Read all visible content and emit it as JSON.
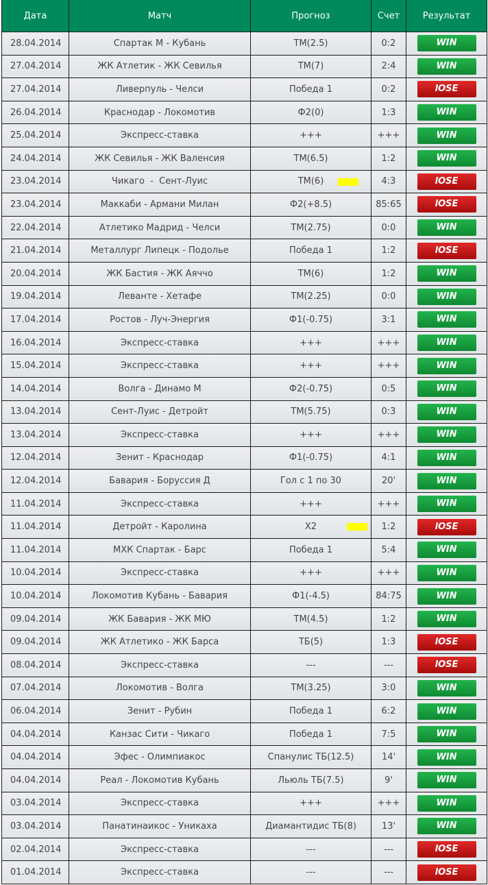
{
  "header": {
    "date": "Дата",
    "match": "Матч",
    "forecast": "Прогноз",
    "score": "Счет",
    "result": "Результат"
  },
  "colors": {
    "header": "#008a5c",
    "win": "#1a9e40",
    "lose": "#c41a1a",
    "highlight": "#ffff00"
  },
  "rows": [
    {
      "date": "28.04.2014",
      "match": "Спартак М - Кубань",
      "forecast": "ТМ(2.5)",
      "score": "0:2",
      "result": "WIN"
    },
    {
      "date": "27.04.2014",
      "match": "ЖК Атлетик - ЖК Севилья",
      "forecast": "ТМ(7)",
      "score": "2:4",
      "result": "WIN"
    },
    {
      "date": "27.04.2014",
      "match": "Ливерпуль - Челси",
      "forecast": "Победа 1",
      "score": "0:2",
      "result": "lOSE"
    },
    {
      "date": "26.04.2014",
      "match": "Краснодар - Локомотив",
      "forecast": "Ф2(0)",
      "score": "1:3",
      "result": "WIN"
    },
    {
      "date": "25.04.2014",
      "match": "Экспресс-ставка",
      "forecast": "+++",
      "score": "+++",
      "result": "WIN"
    },
    {
      "date": "24.04.2014",
      "match": "ЖК Севилья - ЖК Валенсия",
      "forecast": "ТМ(6.5)",
      "score": "1:2",
      "result": "WIN"
    },
    {
      "date": "23.04.2014",
      "match": "Чикаго  -  Сент-Луис",
      "forecast": "ТМ(6)",
      "score": "4:3",
      "result": "lOSE",
      "highlight": true
    },
    {
      "date": "23.04.2014",
      "match": "Маккаби - Армани Милан",
      "forecast": "Ф2(+8.5)",
      "score": "85:65",
      "result": "lOSE"
    },
    {
      "date": "22.04.2014",
      "match": "Атлетико Мадрид - Челси",
      "forecast": "ТМ(2.75)",
      "score": "0:0",
      "result": "WIN"
    },
    {
      "date": "21.04.2014",
      "match": "Металлург Липецк - Подолье",
      "forecast": "Победа 1",
      "score": "1:2",
      "result": "lOSE"
    },
    {
      "date": "20.04.2014",
      "match": "ЖК Бастия - ЖК Аяччо",
      "forecast": "ТМ(6)",
      "score": "1:2",
      "result": "WIN"
    },
    {
      "date": "19.04.2014",
      "match": "Леванте - Хетафе",
      "forecast": "ТМ(2.25)",
      "score": "0:0",
      "result": "WIN"
    },
    {
      "date": "17.04.2014",
      "match": "Ростов - Луч-Энергия",
      "forecast": "Ф1(-0.75)",
      "score": "3:1",
      "result": "WIN"
    },
    {
      "date": "16.04.2014",
      "match": "Экспресс-ставка",
      "forecast": "+++",
      "score": "+++",
      "result": "WIN"
    },
    {
      "date": "15.04.2014",
      "match": "Экспресс-ставка",
      "forecast": "+++",
      "score": "+++",
      "result": "WIN"
    },
    {
      "date": "14.04.2014",
      "match": "Волга - Динамо М",
      "forecast": "Ф2(-0.75)",
      "score": "0:5",
      "result": "WIN"
    },
    {
      "date": "13.04.2014",
      "match": "Сент-Луис - Детройт",
      "forecast": "ТМ(5.75)",
      "score": "0:3",
      "result": "WIN"
    },
    {
      "date": "13.04.2014",
      "match": "Экспресс-ставка",
      "forecast": "+++",
      "score": "+++",
      "result": "WIN"
    },
    {
      "date": "12.04.2014",
      "match": "Зенит - Краснодар",
      "forecast": "Ф1(-0.75)",
      "score": "4:1",
      "result": "WIN"
    },
    {
      "date": "12.04.2014",
      "match": "Бавария - Боруссия Д",
      "forecast": "Гол с 1 по 30",
      "score": "20'",
      "result": "WIN"
    },
    {
      "date": "11.04.2014",
      "match": "Экспресс-ставка",
      "forecast": "+++",
      "score": "+++",
      "result": "WIN"
    },
    {
      "date": "11.04.2014",
      "match": "Детройт - Каролина",
      "forecast": "Х2",
      "score": "1:2",
      "result": "lOSE",
      "highlight": true
    },
    {
      "date": "11.04.2014",
      "match": "МХК Спартак - Барс",
      "forecast": "Победа 1",
      "score": "5:4",
      "result": "WIN"
    },
    {
      "date": "10.04.2014",
      "match": "Экспресс-ставка",
      "forecast": "+++",
      "score": "+++",
      "result": "WIN"
    },
    {
      "date": "10.04.2014",
      "match": "Локомотив Кубань - Бавария",
      "forecast": "Ф1(-4.5)",
      "score": "84:75",
      "result": "WIN"
    },
    {
      "date": "09.04.2014",
      "match": "ЖК Бавария - ЖК МЮ",
      "forecast": "ТМ(4.5)",
      "score": "1:2",
      "result": "WIN"
    },
    {
      "date": "09.04.2014",
      "match": "ЖК Атлетико - ЖК Барса",
      "forecast": "ТБ(5)",
      "score": "1:3",
      "result": "lOSE"
    },
    {
      "date": "08.04.2014",
      "match": "Экспресс-ставка",
      "forecast": "---",
      "score": "---",
      "result": "lOSE"
    },
    {
      "date": "07.04.2014",
      "match": "Локомотив - Волга",
      "forecast": "ТМ(3.25)",
      "score": "3:0",
      "result": "WIN"
    },
    {
      "date": "06.04.2014",
      "match": "Зенит - Рубин",
      "forecast": "Победа 1",
      "score": "6:2",
      "result": "WIN"
    },
    {
      "date": "04.04.2014",
      "match": "Канзас Сити - Чикаго",
      "forecast": "Победа 1",
      "score": "7:5",
      "result": "WIN"
    },
    {
      "date": "04.04.2014",
      "match": "Эфес - Олимпиакос",
      "forecast": "Спанулис ТБ(12.5)",
      "score": "14'",
      "result": "WIN"
    },
    {
      "date": "04.04.2014",
      "match": "Реал - Локомотив Кубань",
      "forecast": "Льюль ТБ(7.5)",
      "score": "9'",
      "result": "WIN"
    },
    {
      "date": "03.04.2014",
      "match": "Экспресс-ставка",
      "forecast": "+++",
      "score": "+++",
      "result": "WIN"
    },
    {
      "date": "03.04.2014",
      "match": "Панатинаикос - Уникаха",
      "forecast": "Диамантидис ТБ(8)",
      "score": "13'",
      "result": "WIN"
    },
    {
      "date": "02.04.2014",
      "match": "Экспресс-ставка",
      "forecast": "---",
      "score": "---",
      "result": "lOSE"
    },
    {
      "date": "01.04.2014",
      "match": "Экспресс-ставка",
      "forecast": "---",
      "score": "---",
      "result": "lOSE"
    }
  ]
}
